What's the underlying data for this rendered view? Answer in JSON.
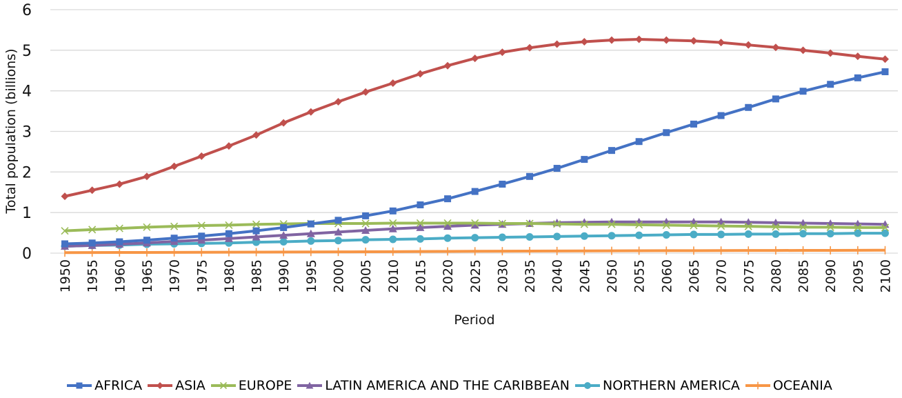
{
  "chart_data": {
    "type": "line",
    "title": "",
    "xlabel": "Period",
    "ylabel": "Total population (billions)",
    "ylim": [
      0,
      6
    ],
    "yticks": [
      0,
      1,
      2,
      3,
      4,
      5,
      6
    ],
    "grid": "horizontal",
    "legend_position": "bottom",
    "x": [
      "1950",
      "1955",
      "1960",
      "1965",
      "1970",
      "1975",
      "1980",
      "1985",
      "1990",
      "1995",
      "2000",
      "2005",
      "2010",
      "2015",
      "2020",
      "2025",
      "2030",
      "2035",
      "2040",
      "2045",
      "2050",
      "2055",
      "2060",
      "2065",
      "2070",
      "2075",
      "2080",
      "2085",
      "2090",
      "2095",
      "2100"
    ],
    "series": [
      {
        "name": "AFRICA",
        "color": "#4472C4",
        "marker": "square",
        "values": [
          0.23,
          0.25,
          0.28,
          0.32,
          0.37,
          0.42,
          0.48,
          0.55,
          0.63,
          0.72,
          0.81,
          0.92,
          1.04,
          1.19,
          1.34,
          1.52,
          1.7,
          1.89,
          2.09,
          2.31,
          2.53,
          2.75,
          2.97,
          3.18,
          3.39,
          3.59,
          3.8,
          3.99,
          4.16,
          4.32,
          4.47
        ]
      },
      {
        "name": "ASIA",
        "color": "#C0504D",
        "marker": "diamond",
        "values": [
          1.4,
          1.55,
          1.7,
          1.89,
          2.14,
          2.39,
          2.64,
          2.91,
          3.21,
          3.48,
          3.73,
          3.97,
          4.19,
          4.42,
          4.62,
          4.8,
          4.95,
          5.06,
          5.15,
          5.21,
          5.25,
          5.27,
          5.25,
          5.23,
          5.19,
          5.13,
          5.07,
          5.0,
          4.93,
          4.85,
          4.78
        ]
      },
      {
        "name": "EUROPE",
        "color": "#9BBB59",
        "marker": "x",
        "values": [
          0.55,
          0.58,
          0.61,
          0.64,
          0.66,
          0.68,
          0.69,
          0.71,
          0.72,
          0.73,
          0.73,
          0.73,
          0.74,
          0.74,
          0.74,
          0.74,
          0.73,
          0.73,
          0.72,
          0.71,
          0.71,
          0.7,
          0.69,
          0.68,
          0.67,
          0.66,
          0.65,
          0.64,
          0.64,
          0.63,
          0.63
        ]
      },
      {
        "name": "LATIN AMERICA AND THE CARIBBEAN",
        "color": "#8064A2",
        "marker": "triangle",
        "values": [
          0.17,
          0.19,
          0.22,
          0.25,
          0.29,
          0.32,
          0.36,
          0.4,
          0.44,
          0.48,
          0.52,
          0.56,
          0.6,
          0.63,
          0.66,
          0.69,
          0.71,
          0.73,
          0.75,
          0.76,
          0.77,
          0.77,
          0.77,
          0.77,
          0.77,
          0.76,
          0.75,
          0.74,
          0.73,
          0.72,
          0.71
        ]
      },
      {
        "name": "NORTHERN AMERICA",
        "color": "#4BACC6",
        "marker": "circle",
        "values": [
          0.17,
          0.19,
          0.2,
          0.22,
          0.23,
          0.24,
          0.25,
          0.27,
          0.28,
          0.3,
          0.31,
          0.33,
          0.34,
          0.35,
          0.37,
          0.38,
          0.39,
          0.4,
          0.41,
          0.42,
          0.43,
          0.44,
          0.45,
          0.46,
          0.46,
          0.47,
          0.47,
          0.48,
          0.48,
          0.49,
          0.49
        ]
      },
      {
        "name": "OCEANIA",
        "color": "#F79646",
        "marker": "plus",
        "values": [
          0.013,
          0.014,
          0.016,
          0.018,
          0.02,
          0.021,
          0.023,
          0.025,
          0.027,
          0.029,
          0.031,
          0.034,
          0.037,
          0.04,
          0.043,
          0.046,
          0.048,
          0.051,
          0.053,
          0.055,
          0.057,
          0.059,
          0.061,
          0.062,
          0.064,
          0.065,
          0.066,
          0.068,
          0.069,
          0.07,
          0.072
        ]
      }
    ]
  }
}
